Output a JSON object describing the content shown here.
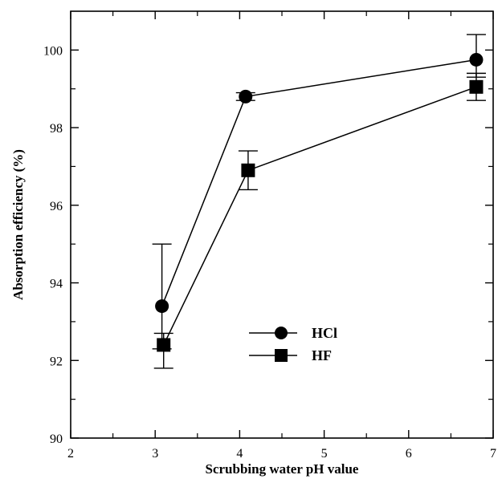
{
  "chart_data": {
    "type": "scatter",
    "title": "",
    "xlabel": "Scrubbing water pH value",
    "ylabel": "Absorption efficiency (%)",
    "xlim": [
      2,
      7
    ],
    "ylim": [
      90,
      101
    ],
    "xticks": [
      2,
      3,
      4,
      5,
      6,
      7
    ],
    "yticks": [
      90,
      92,
      94,
      96,
      98,
      100
    ],
    "legend_position": "lower-center",
    "grid": false,
    "series": [
      {
        "name": "HCl",
        "marker": "circle",
        "color": "#000000",
        "x": [
          3.08,
          4.07,
          6.8
        ],
        "y": [
          93.4,
          98.8,
          99.75
        ],
        "err_low": [
          92.3,
          98.7,
          99.3
        ],
        "err_high": [
          95.0,
          98.9,
          100.4
        ]
      },
      {
        "name": "HF",
        "marker": "square",
        "color": "#000000",
        "x": [
          3.1,
          4.1,
          6.8
        ],
        "y": [
          92.4,
          96.9,
          99.05
        ],
        "err_low": [
          91.8,
          96.4,
          98.7
        ],
        "err_high": [
          92.7,
          97.4,
          99.4
        ]
      }
    ]
  }
}
